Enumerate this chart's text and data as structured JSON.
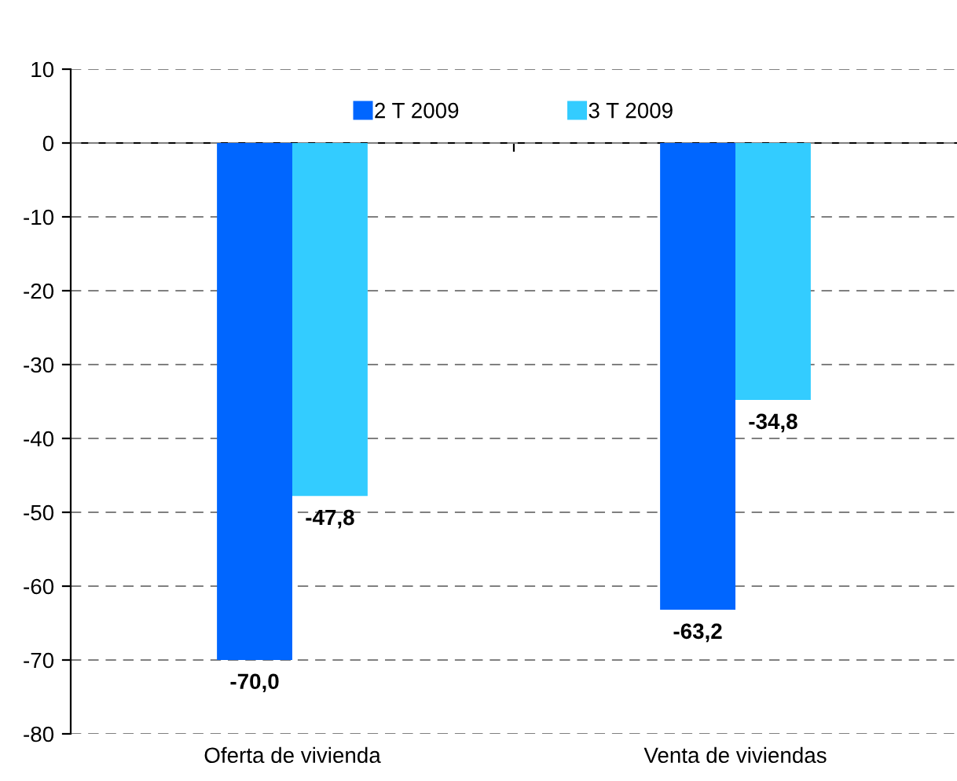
{
  "chart_data": {
    "type": "bar",
    "categories": [
      "Oferta de vivienda",
      "Venta de viviendas"
    ],
    "series": [
      {
        "name": "2 T 2009",
        "color": "#0066ff",
        "values": [
          -70.0,
          -63.2
        ],
        "value_labels": [
          "-70,0",
          "-63,2"
        ]
      },
      {
        "name": "3 T 2009",
        "color": "#33ccff",
        "values": [
          -47.8,
          -34.8
        ],
        "value_labels": [
          "-47,8",
          "-34,8"
        ]
      }
    ],
    "ylim": [
      -80,
      10
    ],
    "yticks": [
      -80,
      -70,
      -60,
      -50,
      -40,
      -30,
      -20,
      -10,
      0,
      10
    ],
    "grid": "y",
    "legend": "top"
  }
}
